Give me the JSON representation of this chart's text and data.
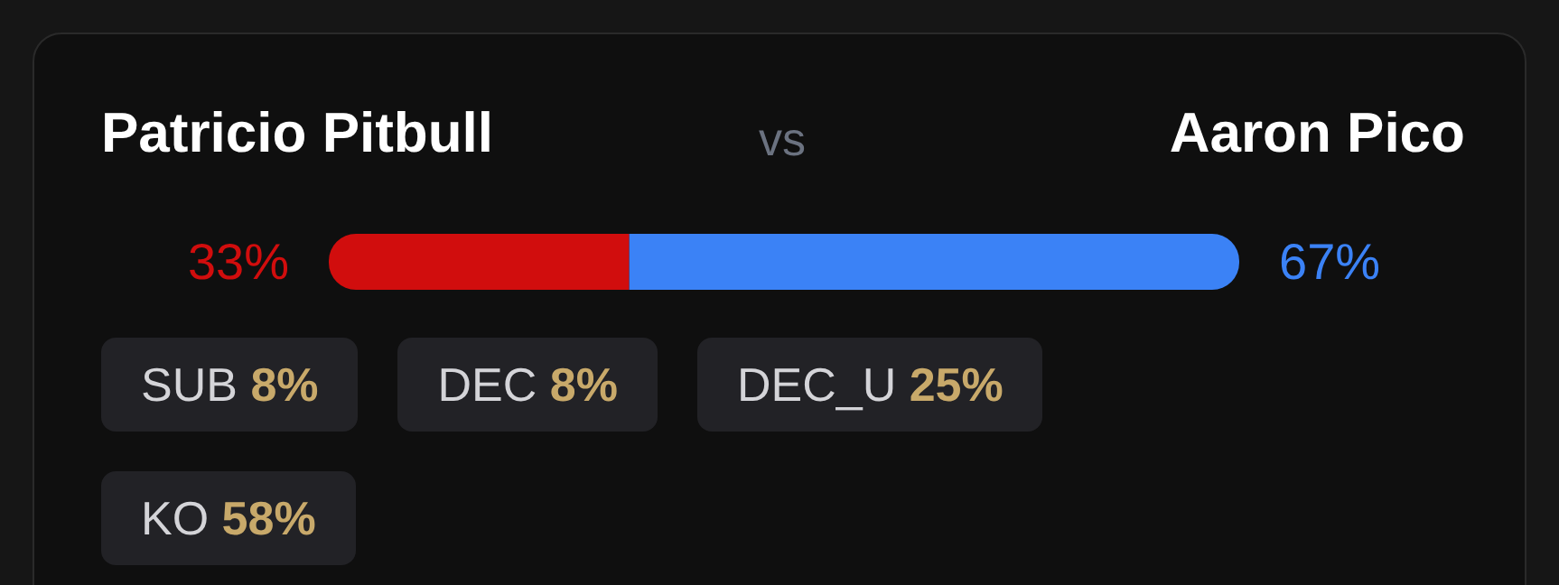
{
  "chart_data": {
    "type": "bar",
    "orientation": "horizontal",
    "stacked": true,
    "title": "vs",
    "categories": [
      null
    ],
    "xlim": [
      0,
      100
    ],
    "tick_labels": false,
    "legend": false,
    "series": [
      {
        "name": "Patricio Pitbull",
        "color": "#d10d0d",
        "values": [
          33
        ],
        "value_labels": [
          "33%"
        ]
      },
      {
        "name": "Aaron Pico",
        "color": "#3b82f6",
        "values": [
          67
        ],
        "value_labels": [
          "67%"
        ]
      }
    ],
    "annotations": [
      "SUB 8%",
      "DEC 8%",
      "DEC_U 25%",
      "KO 58%"
    ]
  }
}
